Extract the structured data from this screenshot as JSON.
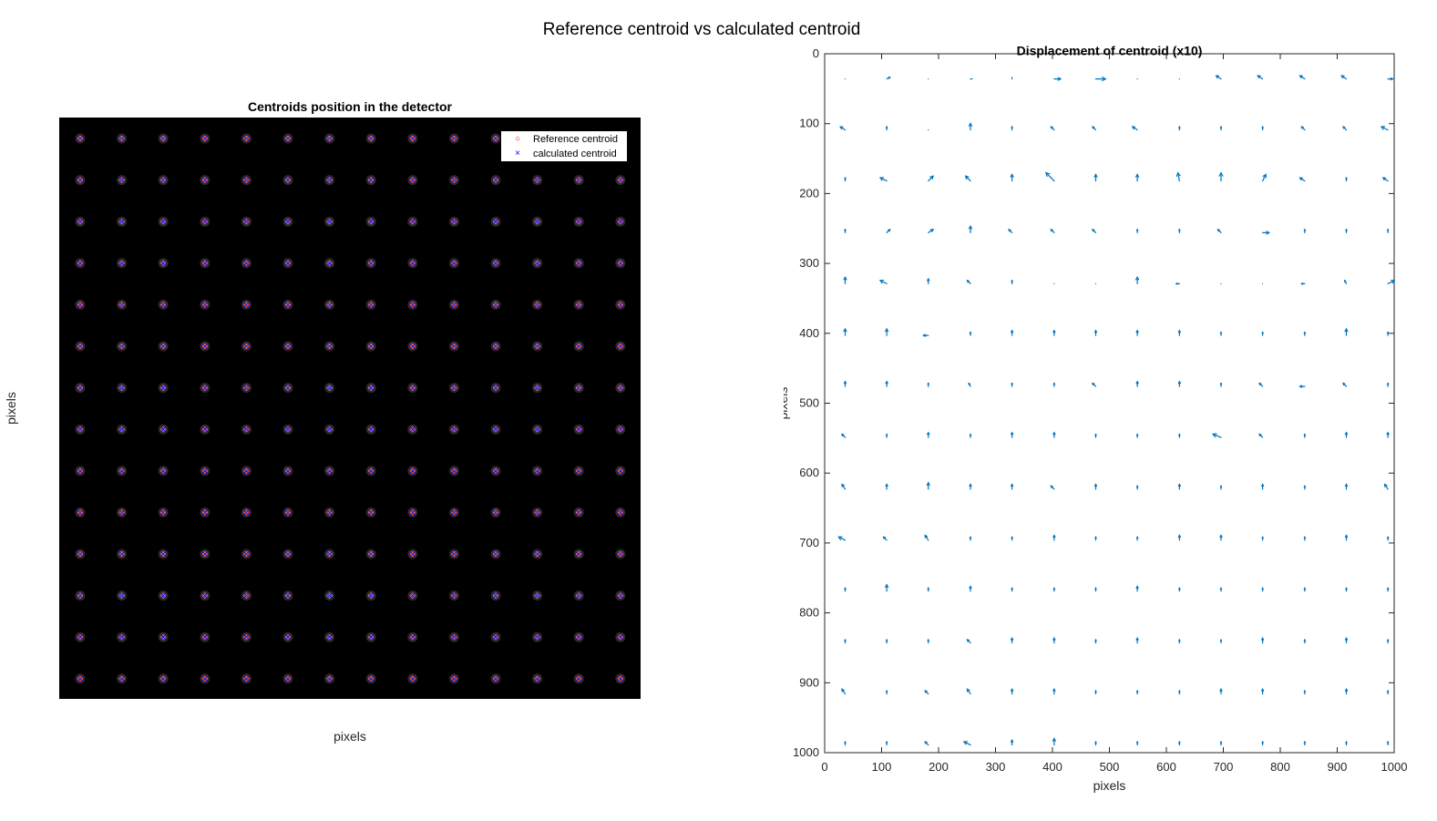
{
  "figure": {
    "suptitle": "Reference centroid vs calculated centroid"
  },
  "left_panel": {
    "title": "Centroids position in the detector",
    "xlabel": "pixels",
    "ylabel": "pixels",
    "legend": {
      "reference_label": "Reference centroid",
      "calculated_label": "calculated centroid",
      "reference_color": "#ff0000",
      "calculated_color": "#0000ff"
    }
  },
  "chart_data": [
    {
      "type": "scatter",
      "title": "Centroids position in the detector",
      "xlabel": "pixels",
      "ylabel": "pixels",
      "background": "#000000",
      "grid": "14 x 14 spots",
      "legend_position": "top-right",
      "series": [
        {
          "name": "Reference centroid",
          "marker": "circle",
          "color": "#ff0000"
        },
        {
          "name": "calculated centroid",
          "marker": "x",
          "color": "#0000ff"
        }
      ]
    },
    {
      "type": "quiver",
      "title": "Displacement of centroid (x10)",
      "xlabel": "pixels",
      "ylabel": "",
      "xlim": [
        0,
        1000
      ],
      "ylim": [
        0,
        1000
      ],
      "yreversed": true,
      "xticks": [
        0,
        100,
        200,
        300,
        400,
        500,
        600,
        700,
        800,
        900,
        1000
      ],
      "yticks": [
        0,
        100,
        200,
        300,
        400,
        500,
        600,
        700,
        800,
        900,
        1000
      ],
      "color": "#0072bd",
      "x": [
        36,
        109,
        182,
        256,
        329,
        403,
        476,
        549,
        623,
        696,
        769,
        843,
        916,
        989
      ],
      "y": [
        36,
        109,
        182,
        256,
        329,
        403,
        476,
        549,
        623,
        696,
        769,
        843,
        916,
        989
      ],
      "u": [
        [
          0,
          2,
          0,
          1,
          0,
          4,
          6,
          0,
          0,
          -3,
          -3,
          -3,
          -3,
          3
        ],
        [
          -3,
          0,
          0,
          0,
          0,
          -2,
          -2,
          -3,
          0,
          0,
          0,
          -2,
          -2,
          -4
        ],
        [
          0,
          -4,
          3,
          -3,
          0,
          -5,
          0,
          0,
          -1,
          0,
          2,
          -3,
          0,
          -3
        ],
        [
          0,
          2,
          3,
          0,
          -2,
          -2,
          -2,
          0,
          0,
          -2,
          4,
          0,
          0,
          0
        ],
        [
          0,
          -4,
          0,
          -2,
          0,
          0,
          0,
          0,
          -2,
          0,
          0,
          -2,
          -1,
          4
        ],
        [
          0,
          0,
          -3,
          0,
          0,
          0,
          0,
          0,
          0,
          0,
          0,
          0,
          0,
          0
        ],
        [
          0,
          0,
          0,
          -1,
          0,
          0,
          -2,
          0,
          0,
          0,
          -2,
          -3,
          -2,
          0
        ],
        [
          -2,
          0,
          0,
          0,
          0,
          0,
          0,
          0,
          0,
          -5,
          -2,
          0,
          0,
          0
        ],
        [
          -2,
          0,
          0,
          0,
          0,
          -2,
          0,
          0,
          0,
          0,
          0,
          0,
          0,
          -2
        ],
        [
          -4,
          -2,
          -2,
          0,
          0,
          0,
          0,
          0,
          0,
          0,
          0,
          0,
          0,
          0
        ],
        [
          0,
          0,
          0,
          0,
          0,
          0,
          0,
          0,
          0,
          0,
          0,
          0,
          0,
          0
        ],
        [
          0,
          0,
          0,
          -2,
          0,
          0,
          0,
          0,
          0,
          0,
          0,
          0,
          0,
          0
        ],
        [
          -2,
          0,
          -2,
          -2,
          0,
          0,
          0,
          0,
          0,
          0,
          0,
          0,
          0,
          0
        ],
        [
          0,
          0,
          -2,
          -4,
          0,
          0,
          0,
          0,
          0,
          0,
          0,
          0,
          0,
          0
        ]
      ],
      "v": [
        [
          0,
          -1,
          0,
          0,
          -1,
          0,
          0,
          0,
          0,
          -2,
          -2,
          -2,
          -2,
          0
        ],
        [
          -2,
          -2,
          0,
          -4,
          -2,
          -2,
          -2,
          -2,
          -2,
          -2,
          -2,
          -2,
          -2,
          -2
        ],
        [
          -2,
          -2,
          -3,
          -3,
          -4,
          -5,
          -4,
          -4,
          -5,
          -5,
          -4,
          -2,
          -2,
          -2
        ],
        [
          -2,
          -2,
          -2,
          -4,
          -2,
          -2,
          -2,
          -2,
          -2,
          -2,
          0,
          -2,
          -2,
          -2
        ],
        [
          -4,
          -2,
          -3,
          -2,
          -2,
          0,
          0,
          -4,
          0,
          0,
          0,
          0,
          -2,
          -2
        ],
        [
          -4,
          -4,
          0,
          -2,
          -3,
          -3,
          -3,
          -3,
          -3,
          -2,
          -2,
          -2,
          -4,
          -2
        ],
        [
          -3,
          -3,
          -2,
          -2,
          -2,
          -2,
          -2,
          -3,
          -3,
          -2,
          -2,
          0,
          -2,
          -2
        ],
        [
          -2,
          -2,
          -3,
          -2,
          -3,
          -3,
          -2,
          -2,
          -2,
          -2,
          -2,
          -2,
          -3,
          -3
        ],
        [
          -3,
          -3,
          -4,
          -3,
          -3,
          -2,
          -3,
          -2,
          -3,
          -2,
          -3,
          -2,
          -3,
          -3
        ],
        [
          -2,
          -2,
          -3,
          -2,
          -2,
          -3,
          -2,
          -2,
          -3,
          -3,
          -2,
          -2,
          -3,
          -2
        ],
        [
          -2,
          -4,
          -2,
          -3,
          -2,
          -2,
          -2,
          -3,
          -2,
          -2,
          -2,
          -2,
          -2,
          -2
        ],
        [
          -2,
          -2,
          -2,
          -2,
          -3,
          -3,
          -2,
          -3,
          -2,
          -2,
          -3,
          -2,
          -3,
          -2
        ],
        [
          -3,
          -2,
          -2,
          -3,
          -3,
          -3,
          -2,
          -2,
          -2,
          -3,
          -3,
          -2,
          -3,
          -2
        ],
        [
          -2,
          -2,
          -2,
          -2,
          -3,
          -4,
          -2,
          -2,
          -2,
          -2,
          -2,
          -2,
          -2,
          -2
        ]
      ]
    }
  ],
  "right_panel": {
    "title": "Displacement of centroid (x10)",
    "xlabel": "pixels",
    "ylabel": "pixels"
  }
}
